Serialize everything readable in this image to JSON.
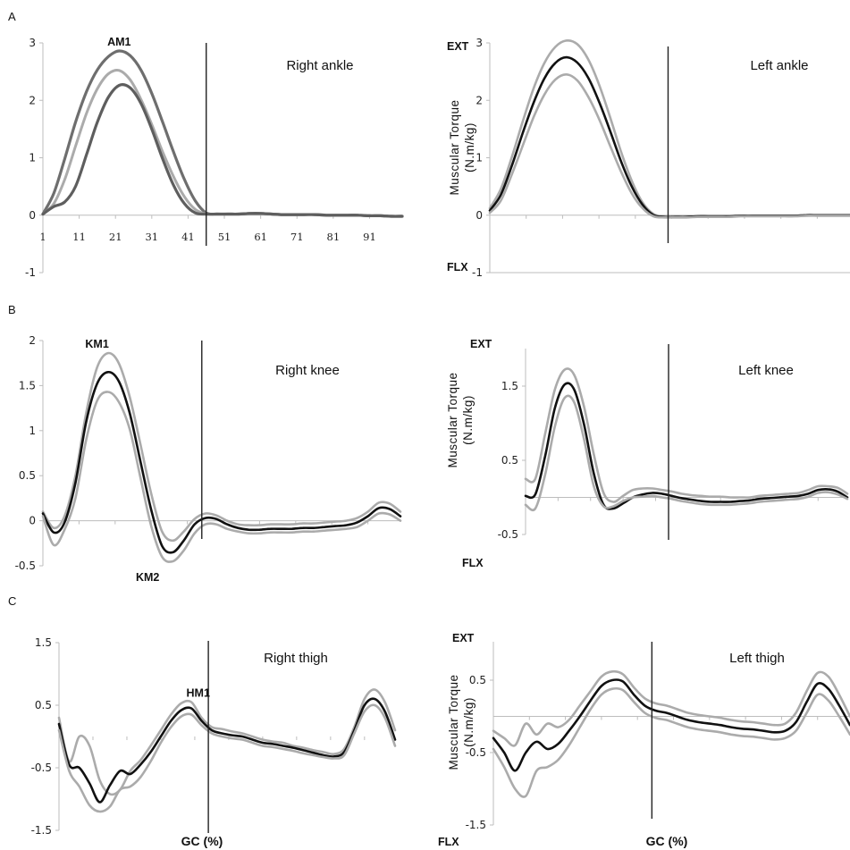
{
  "panel_labels": [
    "A",
    "B",
    "C"
  ],
  "ylabel_line1": "Muscular Torque",
  "ylabel_line2": "(N.m/kg)",
  "ext_label": "EXT",
  "flx_label": "FLX",
  "xlabel": "GC (%)",
  "chart_data": [
    {
      "id": "right-ankle",
      "type": "line",
      "title": "Right ankle",
      "x": [
        1,
        4,
        7,
        10,
        13,
        16,
        19,
        22,
        25,
        28,
        31,
        34,
        37,
        40,
        43,
        46,
        49,
        52,
        55,
        58,
        61,
        64,
        67,
        70,
        73,
        76,
        79,
        82,
        85,
        88,
        91,
        94,
        97,
        100
      ],
      "series": [
        {
          "values": [
            0.02,
            0.38,
            0.98,
            1.62,
            2.15,
            2.53,
            2.76,
            2.86,
            2.78,
            2.53,
            2.12,
            1.62,
            1.1,
            0.62,
            0.25,
            0.04,
            0.02,
            0.02,
            0.02,
            0.03,
            0.03,
            0.02,
            0.01,
            0.01,
            0.01,
            0.01,
            0.0,
            0.0,
            0.0,
            0.0,
            -0.01,
            -0.01,
            -0.02,
            -0.02
          ]
        },
        {
          "values": [
            0.02,
            0.2,
            0.62,
            1.2,
            1.77,
            2.2,
            2.46,
            2.52,
            2.36,
            2.02,
            1.58,
            1.1,
            0.67,
            0.32,
            0.1,
            0.02,
            0.02,
            0.02,
            0.02,
            0.03,
            0.03,
            0.02,
            0.01,
            0.01,
            0.01,
            0.01,
            0.0,
            0.0,
            0.0,
            0.0,
            -0.01,
            -0.01,
            -0.02,
            -0.02
          ]
        },
        {
          "values": [
            0.02,
            0.15,
            0.23,
            0.5,
            1.05,
            1.62,
            2.05,
            2.26,
            2.22,
            1.95,
            1.5,
            0.98,
            0.52,
            0.2,
            0.04,
            0.02,
            0.02,
            0.02,
            0.02,
            0.03,
            0.03,
            0.02,
            0.01,
            0.01,
            0.01,
            0.01,
            0.0,
            0.0,
            0.0,
            0.0,
            -0.01,
            -0.01,
            -0.02,
            -0.02
          ]
        }
      ],
      "vline": 46,
      "annotations": [
        {
          "text": "AM1",
          "x": 22,
          "y": 2.86
        }
      ],
      "yticks": [
        -1,
        0,
        1,
        2,
        3
      ],
      "xticks": [
        1,
        11,
        21,
        31,
        41,
        51,
        61,
        71,
        81,
        91
      ],
      "ylim": [
        -1,
        3
      ]
    },
    {
      "id": "left-ankle",
      "type": "line",
      "title": "Left ankle",
      "x": [
        1,
        4,
        7,
        10,
        13,
        16,
        19,
        22,
        25,
        28,
        31,
        34,
        37,
        40,
        43,
        46,
        49,
        52,
        55,
        58,
        61,
        64,
        67,
        70,
        73,
        76,
        79,
        82,
        85,
        88,
        91,
        94,
        97,
        100
      ],
      "series": [
        {
          "values": [
            0.12,
            0.45,
            1.0,
            1.62,
            2.2,
            2.65,
            2.93,
            3.04,
            2.98,
            2.72,
            2.28,
            1.72,
            1.12,
            0.6,
            0.22,
            0.02,
            -0.03,
            -0.03,
            -0.03,
            -0.02,
            -0.02,
            -0.02,
            -0.02,
            -0.01,
            -0.01,
            -0.01,
            -0.01,
            -0.01,
            -0.01,
            0.0,
            0.0,
            0.0,
            0.0,
            0.0
          ]
        },
        {
          "values": [
            0.08,
            0.35,
            0.85,
            1.42,
            1.95,
            2.38,
            2.65,
            2.75,
            2.66,
            2.4,
            1.98,
            1.48,
            0.95,
            0.5,
            0.18,
            0.0,
            -0.03,
            -0.03,
            -0.03,
            -0.02,
            -0.02,
            -0.02,
            -0.02,
            -0.01,
            -0.01,
            -0.01,
            -0.01,
            -0.01,
            -0.01,
            0.0,
            0.0,
            0.0,
            0.0,
            0.0
          ]
        },
        {
          "values": [
            0.04,
            0.25,
            0.7,
            1.2,
            1.7,
            2.1,
            2.36,
            2.45,
            2.35,
            2.07,
            1.68,
            1.22,
            0.77,
            0.38,
            0.12,
            -0.02,
            -0.04,
            -0.04,
            -0.04,
            -0.03,
            -0.03,
            -0.03,
            -0.03,
            -0.02,
            -0.02,
            -0.02,
            -0.02,
            -0.02,
            -0.02,
            -0.01,
            -0.01,
            -0.01,
            -0.01,
            -0.01
          ]
        }
      ],
      "vline": 50,
      "yticks": [
        -1,
        0,
        1,
        2,
        3
      ],
      "ylim": [
        -1,
        3
      ]
    },
    {
      "id": "right-knee",
      "type": "line",
      "title": "Right knee",
      "x": [
        1,
        4,
        7,
        10,
        13,
        16,
        19,
        22,
        25,
        28,
        31,
        34,
        37,
        40,
        43,
        46,
        49,
        52,
        55,
        58,
        61,
        64,
        67,
        70,
        73,
        76,
        79,
        82,
        85,
        88,
        91,
        94,
        97,
        100
      ],
      "series": [
        {
          "values": [
            0.1,
            -0.08,
            0.05,
            0.5,
            1.2,
            1.7,
            1.86,
            1.75,
            1.38,
            0.85,
            0.3,
            -0.12,
            -0.22,
            -0.12,
            0.02,
            0.08,
            0.06,
            0.0,
            -0.04,
            -0.05,
            -0.05,
            -0.04,
            -0.04,
            -0.04,
            -0.03,
            -0.03,
            -0.02,
            -0.01,
            0.0,
            0.03,
            0.1,
            0.2,
            0.19,
            0.1
          ]
        },
        {
          "values": [
            0.08,
            -0.13,
            -0.02,
            0.42,
            1.1,
            1.52,
            1.65,
            1.55,
            1.2,
            0.66,
            0.12,
            -0.28,
            -0.35,
            -0.22,
            -0.04,
            0.03,
            0.02,
            -0.04,
            -0.08,
            -0.1,
            -0.1,
            -0.09,
            -0.09,
            -0.09,
            -0.08,
            -0.08,
            -0.07,
            -0.06,
            -0.05,
            -0.02,
            0.05,
            0.14,
            0.13,
            0.05
          ]
        },
        {
          "values": [
            0.05,
            -0.27,
            -0.1,
            0.25,
            0.9,
            1.33,
            1.43,
            1.32,
            1.02,
            0.48,
            -0.06,
            -0.4,
            -0.45,
            -0.33,
            -0.14,
            -0.04,
            -0.04,
            -0.09,
            -0.12,
            -0.14,
            -0.14,
            -0.13,
            -0.13,
            -0.13,
            -0.12,
            -0.12,
            -0.11,
            -0.1,
            -0.09,
            -0.07,
            0.0,
            0.08,
            0.07,
            0.0
          ]
        }
      ],
      "vline": 45,
      "annotations": [
        {
          "text": "KM1",
          "x": 16,
          "y": 1.86
        },
        {
          "text": "KM2",
          "x": 30,
          "y": -0.45
        }
      ],
      "yticks": [
        -0.5,
        0,
        0.5,
        1,
        1.5,
        2
      ],
      "ylim": [
        -0.5,
        2
      ]
    },
    {
      "id": "left-knee",
      "type": "line",
      "title": "Left knee",
      "x": [
        1,
        4,
        7,
        10,
        13,
        16,
        19,
        22,
        25,
        28,
        31,
        34,
        37,
        40,
        43,
        46,
        49,
        52,
        55,
        58,
        61,
        64,
        67,
        70,
        73,
        76,
        79,
        82,
        85,
        88,
        91,
        94,
        97,
        100
      ],
      "series": [
        {
          "values": [
            0.25,
            0.25,
            0.85,
            1.45,
            1.72,
            1.65,
            1.22,
            0.58,
            0.06,
            -0.06,
            0.02,
            0.1,
            0.12,
            0.12,
            0.1,
            0.08,
            0.05,
            0.03,
            0.02,
            0.01,
            0.01,
            0.0,
            0.0,
            0.0,
            0.02,
            0.03,
            0.04,
            0.05,
            0.06,
            0.1,
            0.15,
            0.15,
            0.13,
            0.05
          ]
        },
        {
          "values": [
            0.02,
            0.04,
            0.55,
            1.2,
            1.52,
            1.45,
            0.98,
            0.32,
            -0.1,
            -0.15,
            -0.08,
            0.0,
            0.04,
            0.06,
            0.05,
            0.02,
            -0.01,
            -0.03,
            -0.05,
            -0.06,
            -0.06,
            -0.06,
            -0.05,
            -0.04,
            -0.02,
            -0.01,
            0.0,
            0.01,
            0.02,
            0.05,
            0.1,
            0.11,
            0.08,
            0.0
          ]
        },
        {
          "values": [
            -0.1,
            -0.15,
            0.3,
            0.95,
            1.34,
            1.28,
            0.78,
            0.15,
            -0.12,
            -0.12,
            -0.05,
            0.0,
            0.01,
            0.02,
            0.0,
            -0.02,
            -0.05,
            -0.07,
            -0.09,
            -0.1,
            -0.1,
            -0.1,
            -0.09,
            -0.08,
            -0.06,
            -0.05,
            -0.04,
            -0.03,
            -0.02,
            0.01,
            0.06,
            0.07,
            0.04,
            -0.02
          ]
        }
      ],
      "vline": 45,
      "yticks": [
        -0.5,
        0.5,
        1.5
      ],
      "ylim": [
        -0.5,
        2
      ]
    },
    {
      "id": "right-thigh",
      "type": "line",
      "title": "Right thigh",
      "x": [
        1,
        4,
        7,
        10,
        13,
        16,
        19,
        22,
        25,
        28,
        31,
        34,
        37,
        40,
        43,
        46,
        49,
        52,
        55,
        58,
        61,
        64,
        67,
        70,
        73,
        76,
        79,
        82,
        85,
        88,
        91,
        94,
        97,
        100
      ],
      "series": [
        {
          "values": [
            0.3,
            -0.4,
            0.0,
            -0.15,
            -0.7,
            -0.92,
            -0.85,
            -0.55,
            -0.38,
            -0.15,
            0.1,
            0.35,
            0.53,
            0.55,
            0.3,
            0.15,
            0.12,
            0.08,
            0.05,
            0.0,
            -0.05,
            -0.08,
            -0.1,
            -0.15,
            -0.18,
            -0.22,
            -0.25,
            -0.28,
            -0.2,
            0.15,
            0.6,
            0.75,
            0.55,
            0.1
          ]
        },
        {
          "values": [
            0.2,
            -0.45,
            -0.5,
            -0.75,
            -1.05,
            -0.78,
            -0.55,
            -0.6,
            -0.45,
            -0.25,
            0.0,
            0.25,
            0.42,
            0.45,
            0.25,
            0.1,
            0.05,
            0.02,
            0.0,
            -0.05,
            -0.1,
            -0.12,
            -0.15,
            -0.18,
            -0.22,
            -0.26,
            -0.3,
            -0.32,
            -0.25,
            0.1,
            0.5,
            0.6,
            0.4,
            -0.05
          ]
        },
        {
          "values": [
            0.1,
            -0.55,
            -0.8,
            -1.1,
            -1.2,
            -1.12,
            -0.85,
            -0.8,
            -0.65,
            -0.4,
            -0.1,
            0.15,
            0.32,
            0.35,
            0.18,
            0.05,
            0.0,
            -0.03,
            -0.05,
            -0.1,
            -0.15,
            -0.17,
            -0.2,
            -0.23,
            -0.27,
            -0.3,
            -0.33,
            -0.35,
            -0.3,
            0.05,
            0.4,
            0.5,
            0.3,
            -0.15
          ]
        }
      ],
      "vline": 45,
      "annotations": [
        {
          "text": "HM1",
          "x": 42,
          "y": 0.55
        }
      ],
      "yticks": [
        -1.5,
        -0.5,
        0.5,
        1.5
      ],
      "ylim": [
        -1.5,
        1.5
      ]
    },
    {
      "id": "left-thigh",
      "type": "line",
      "title": "Left thigh",
      "x": [
        1,
        4,
        7,
        10,
        13,
        16,
        19,
        22,
        25,
        28,
        31,
        34,
        37,
        40,
        43,
        46,
        49,
        52,
        55,
        58,
        61,
        64,
        67,
        70,
        73,
        76,
        79,
        82,
        85,
        88,
        91,
        94,
        97,
        100
      ],
      "series": [
        {
          "values": [
            -0.2,
            -0.3,
            -0.4,
            -0.1,
            -0.25,
            -0.1,
            -0.15,
            -0.05,
            0.15,
            0.35,
            0.55,
            0.62,
            0.58,
            0.4,
            0.25,
            0.18,
            0.15,
            0.1,
            0.05,
            0.02,
            0.0,
            -0.02,
            -0.05,
            -0.07,
            -0.08,
            -0.1,
            -0.12,
            -0.1,
            0.05,
            0.35,
            0.6,
            0.55,
            0.3,
            0.0
          ]
        },
        {
          "values": [
            -0.3,
            -0.5,
            -0.75,
            -0.5,
            -0.35,
            -0.45,
            -0.38,
            -0.2,
            0.0,
            0.22,
            0.42,
            0.5,
            0.48,
            0.3,
            0.15,
            0.08,
            0.05,
            0.0,
            -0.05,
            -0.08,
            -0.1,
            -0.12,
            -0.15,
            -0.17,
            -0.18,
            -0.2,
            -0.22,
            -0.2,
            -0.08,
            0.2,
            0.45,
            0.38,
            0.15,
            -0.12
          ]
        },
        {
          "values": [
            -0.45,
            -0.7,
            -1.0,
            -1.1,
            -0.75,
            -0.7,
            -0.6,
            -0.4,
            -0.15,
            0.1,
            0.3,
            0.38,
            0.36,
            0.2,
            0.05,
            -0.02,
            -0.05,
            -0.1,
            -0.15,
            -0.18,
            -0.2,
            -0.22,
            -0.25,
            -0.27,
            -0.28,
            -0.3,
            -0.32,
            -0.3,
            -0.2,
            0.05,
            0.3,
            0.22,
            0.0,
            -0.25
          ]
        }
      ],
      "vline": 45,
      "yticks": [
        -1.5,
        -0.5,
        0.5
      ],
      "ylim": [
        -1.5,
        1
      ]
    }
  ],
  "colors": {
    "grey": "#ababab",
    "black": "#111111",
    "dark_grey": "#6e6e6e",
    "mid_grey": "#909090",
    "vline": "#222222",
    "axis": "#bdbdbd"
  }
}
